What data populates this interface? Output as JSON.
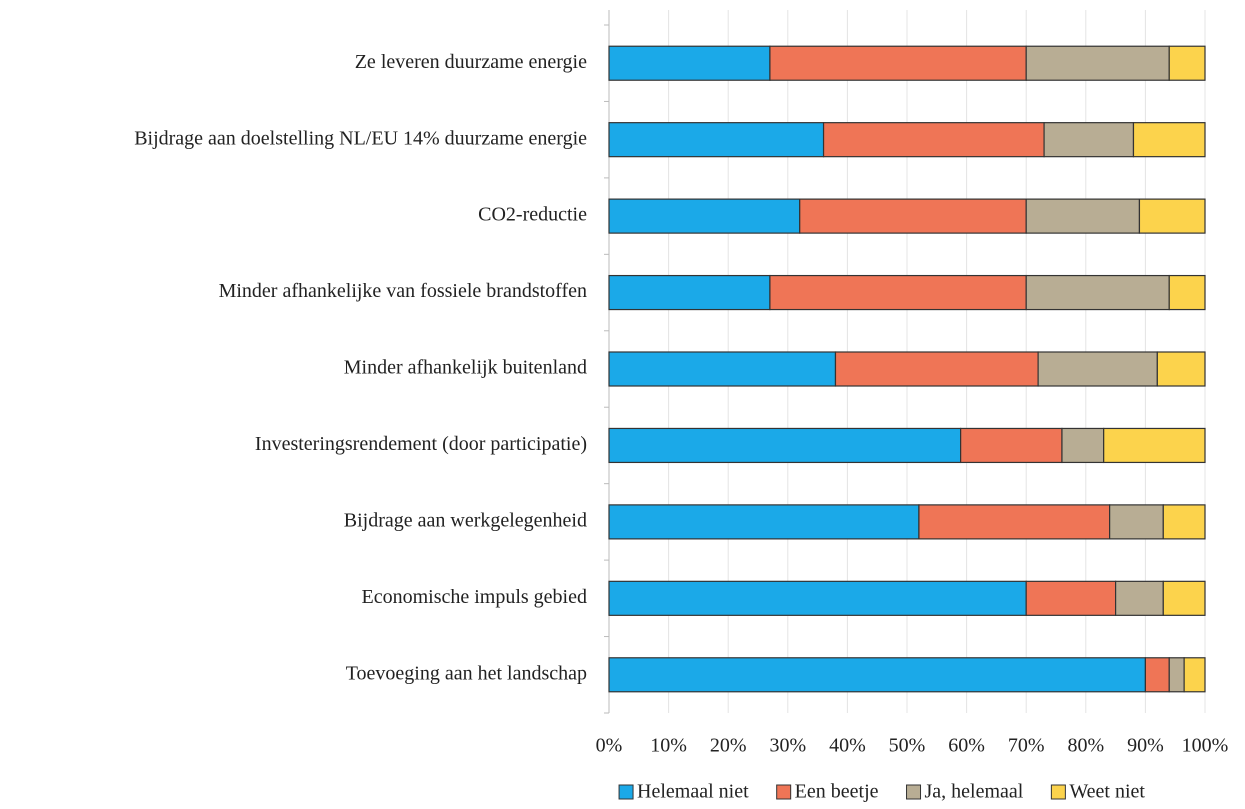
{
  "chart_data": {
    "type": "stacked_barh",
    "categories": [
      "Ze leveren duurzame energie",
      "Bijdrage aan doelstelling NL/EU 14% duurzame energie",
      "CO2-reductie",
      "Minder afhankelijke van fossiele brandstoffen",
      "Minder afhankelijk buitenland",
      "Investeringsrendement (door participatie)",
      "Bijdrage aan werkgelegenheid",
      "Economische impuls gebied",
      "Toevoeging aan het landschap"
    ],
    "series": [
      {
        "name": "Helemaal niet",
        "color": "#1ba9e8",
        "values": [
          27,
          36,
          32,
          27,
          38,
          59,
          52,
          70,
          90
        ]
      },
      {
        "name": "Een beetje",
        "color": "#ef7556",
        "values": [
          43,
          37,
          38,
          43,
          34,
          17,
          32,
          15,
          4
        ]
      },
      {
        "name": "Ja, helemaal",
        "color": "#b8ad94",
        "values": [
          24,
          15,
          19,
          24,
          20,
          7,
          9,
          8,
          2.5
        ]
      },
      {
        "name": "Weet niet",
        "color": "#fcd34c",
        "values": [
          6,
          12,
          11,
          6,
          8,
          17,
          7,
          7,
          3.5
        ]
      }
    ],
    "xlim": [
      0,
      100
    ],
    "xticks": [
      {
        "value": 0,
        "label": "0%"
      },
      {
        "value": 10,
        "label": "10%"
      },
      {
        "value": 20,
        "label": "20%"
      },
      {
        "value": 30,
        "label": "30%"
      },
      {
        "value": 40,
        "label": "40%"
      },
      {
        "value": 50,
        "label": "50%"
      },
      {
        "value": 60,
        "label": "60%"
      },
      {
        "value": 70,
        "label": "70%"
      },
      {
        "value": 80,
        "label": "80%"
      },
      {
        "value": 90,
        "label": "90%"
      },
      {
        "value": 100,
        "label": "100%"
      }
    ],
    "grid": true,
    "legend": "bottom"
  }
}
